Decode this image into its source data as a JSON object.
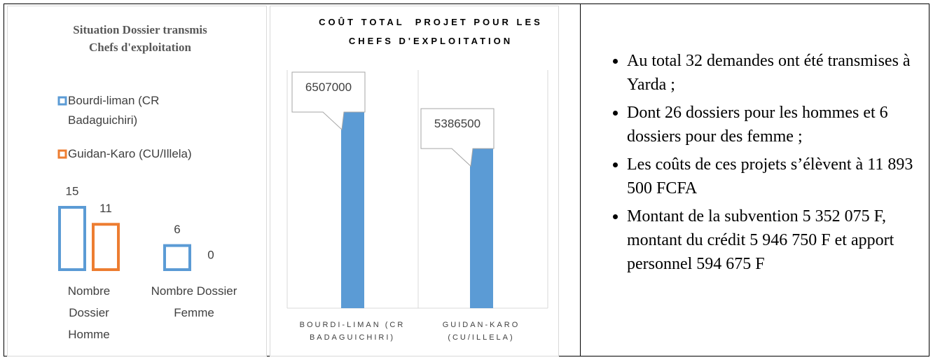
{
  "chart_data": [
    {
      "type": "bar",
      "title": "Situation Dossier transmis Chefs d'exploitation",
      "categories": [
        "Nombre Dossier Homme",
        "Nombre Dossier Femme"
      ],
      "series": [
        {
          "name": "Bourdi-liman (CR Badaguichiri)",
          "color": "#5b9bd5",
          "values": [
            15,
            6
          ]
        },
        {
          "name": "Guidan-Karo (CU/Illela)",
          "color": "#ed7d31",
          "values": [
            11,
            0
          ]
        }
      ]
    },
    {
      "type": "bar",
      "title": "COÛT TOTAL  PROJET POUR LES CHEFS D'EXPLOITATION",
      "categories": [
        "BOURDI-LIMAN (CR BADAGUICHIRI)",
        "GUIDAN-KARO (CU/ILLELA)"
      ],
      "values": [
        6507000,
        5386500
      ],
      "color": "#5b9bd5"
    }
  ],
  "bullets": [
    "Au total 32 demandes ont été transmises à Yarda ;",
    "Dont 26 dossiers pour les hommes et 6 dossiers pour des femme ;",
    "Les coûts de ces projets s’élèvent à 11 893 500 FCFA",
    "Montant de la subvention 5 352 075 F, montant du crédit 5 946 750 F et apport personnel 594 675 F"
  ]
}
